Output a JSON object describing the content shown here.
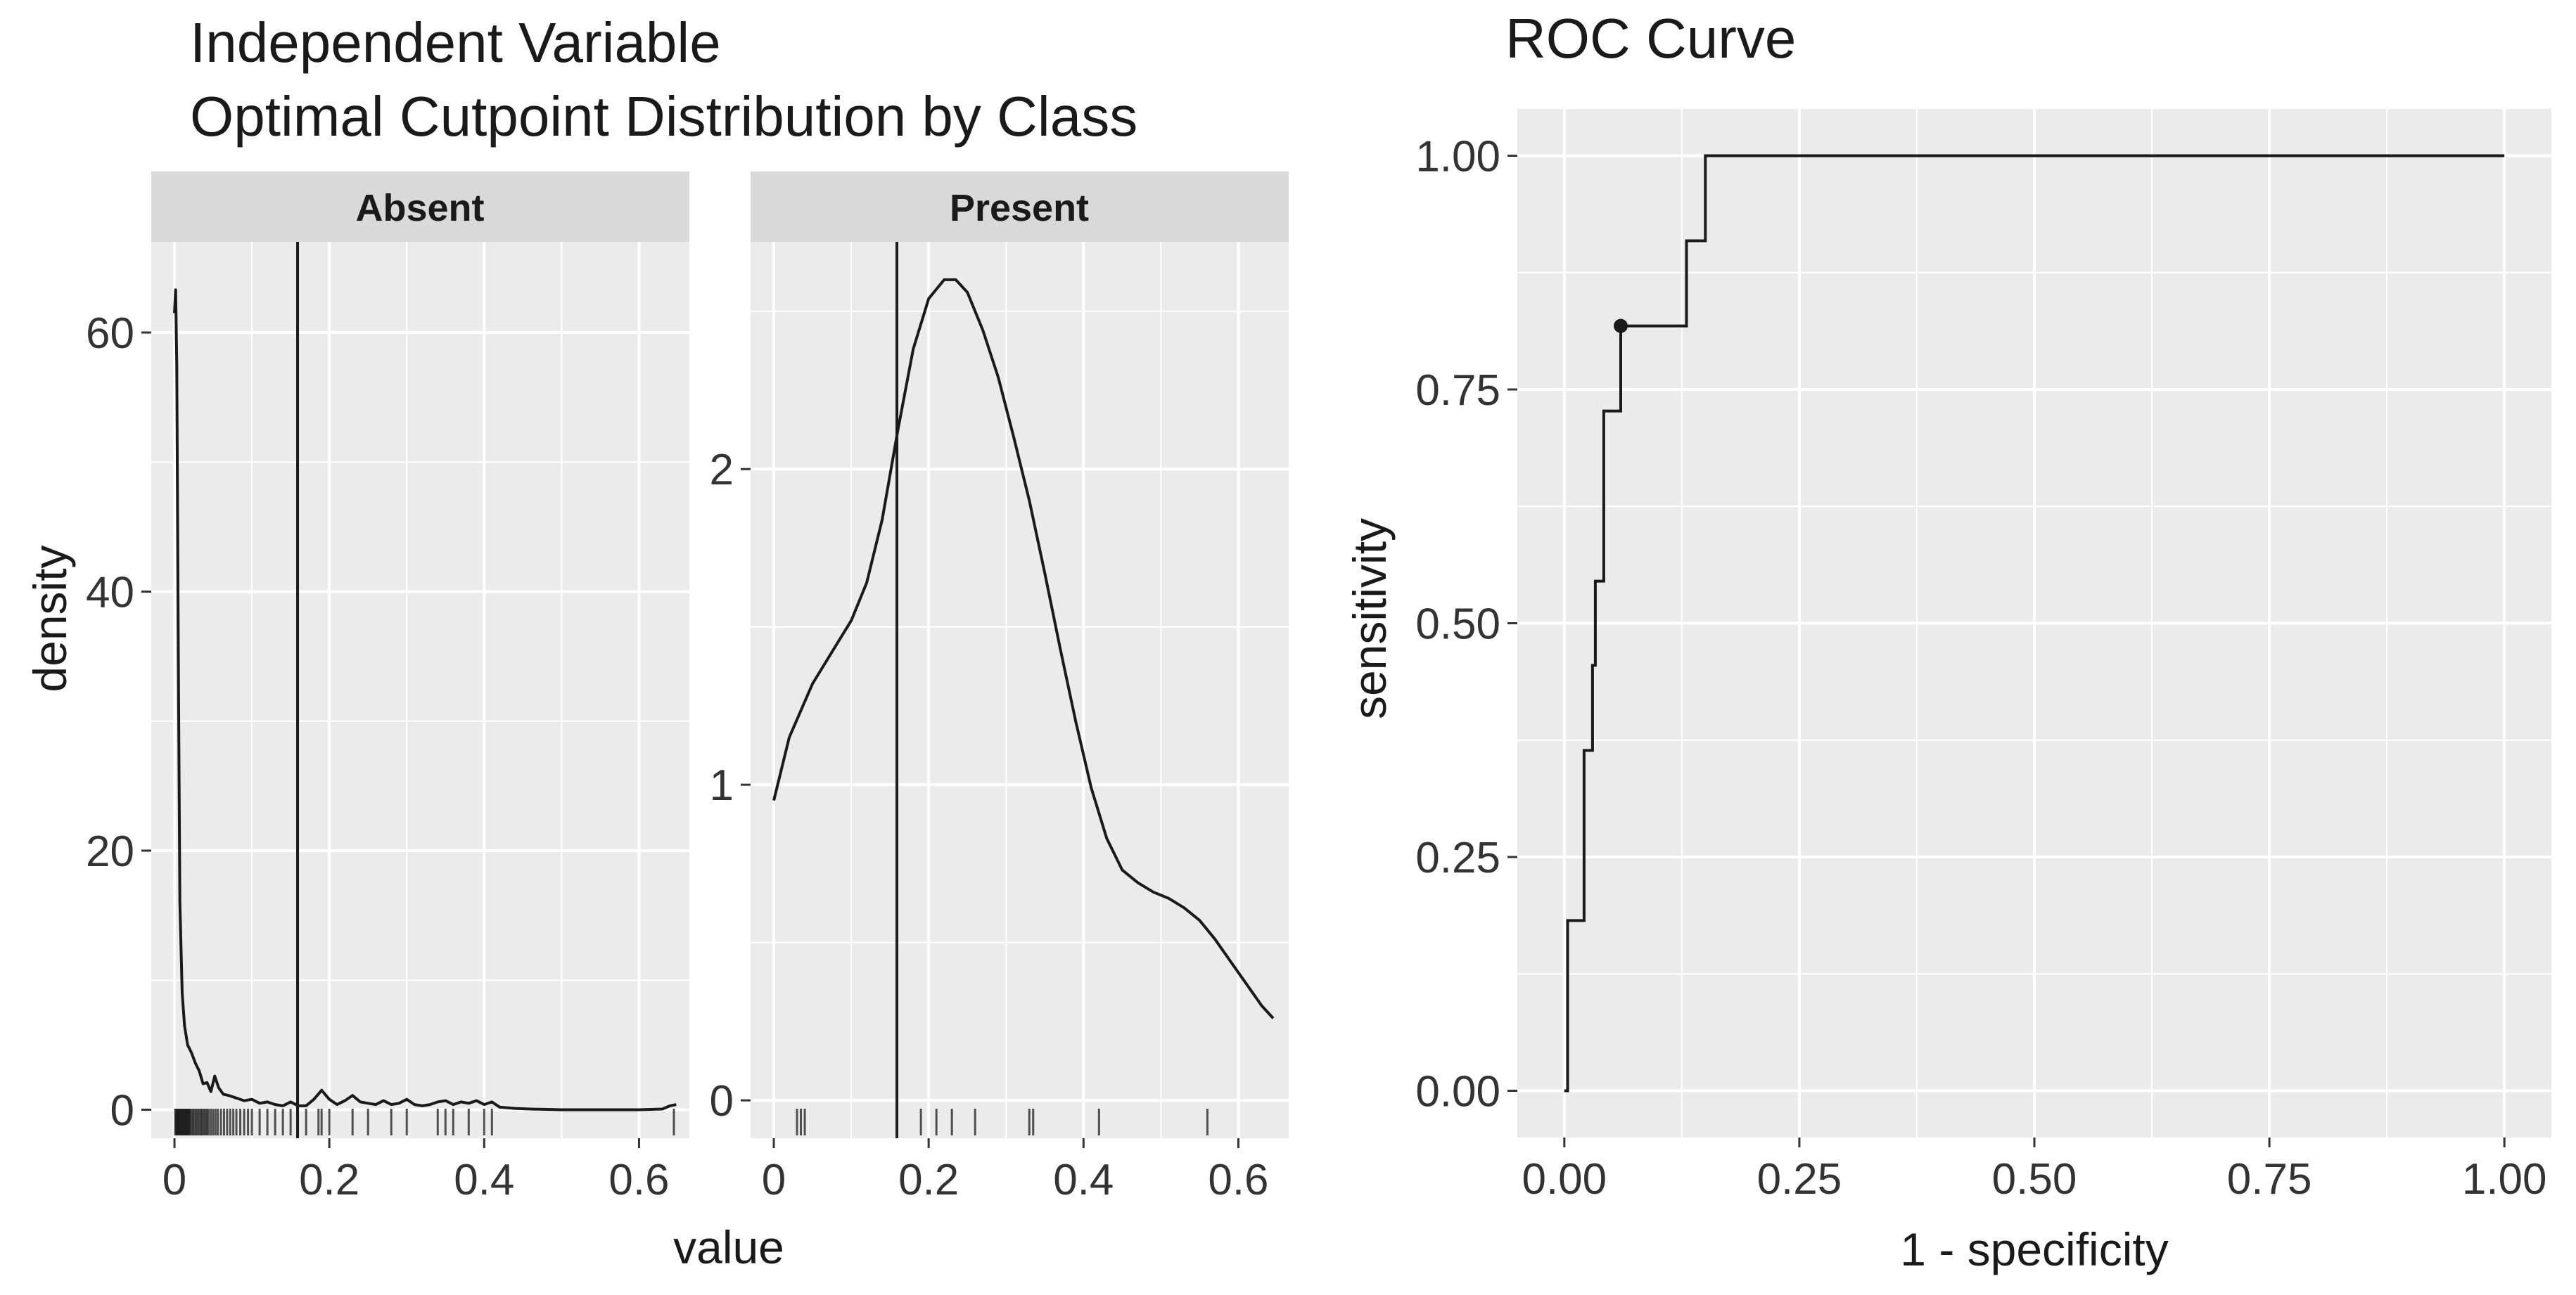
{
  "colors": {
    "panel_bg": "#ebebeb",
    "strip_bg": "#d9d9d9",
    "grid_major": "#ffffff",
    "ink": "#1a1a1a",
    "tick_text": "#333333",
    "axis_title": "#1a1a1a"
  },
  "chart_data": [
    {
      "type": "area",
      "title": "Independent Variable",
      "subtitle": "Optimal Cutpoint Distribution by Class",
      "xlabel": "value",
      "ylabel": "density",
      "cutpoint": 0.159,
      "facets": [
        {
          "name": "Absent",
          "xlim": [
            -0.03,
            0.665
          ],
          "ylim": [
            -2.2,
            67
          ],
          "xticks": [
            0,
            0.2,
            0.4,
            0.6
          ],
          "xtick_labels": [
            "0",
            "0.2",
            "0.4",
            "0.6"
          ],
          "yticks": [
            0,
            20,
            40,
            60
          ],
          "ytick_labels": [
            "0",
            "20",
            "40",
            "60"
          ],
          "x_minor": [
            0.1,
            0.3,
            0.5
          ],
          "y_minor": [
            10,
            30,
            50
          ],
          "density": [
            [
              0.0,
              61.5
            ],
            [
              0.0015,
              63.3
            ],
            [
              0.003,
              57.5
            ],
            [
              0.005,
              35.0
            ],
            [
              0.007,
              16.0
            ],
            [
              0.01,
              9.0
            ],
            [
              0.013,
              6.5
            ],
            [
              0.017,
              5.0
            ],
            [
              0.022,
              4.4
            ],
            [
              0.027,
              3.6
            ],
            [
              0.032,
              3.0
            ],
            [
              0.037,
              2.0
            ],
            [
              0.042,
              2.1
            ],
            [
              0.047,
              1.4
            ],
            [
              0.052,
              2.6
            ],
            [
              0.057,
              1.7
            ],
            [
              0.063,
              1.2
            ],
            [
              0.07,
              1.1
            ],
            [
              0.08,
              0.9
            ],
            [
              0.09,
              0.7
            ],
            [
              0.1,
              0.8
            ],
            [
              0.11,
              0.5
            ],
            [
              0.12,
              0.6
            ],
            [
              0.13,
              0.4
            ],
            [
              0.14,
              0.3
            ],
            [
              0.15,
              0.6
            ],
            [
              0.16,
              0.3
            ],
            [
              0.17,
              0.3
            ],
            [
              0.18,
              0.8
            ],
            [
              0.19,
              1.5
            ],
            [
              0.2,
              0.8
            ],
            [
              0.21,
              0.4
            ],
            [
              0.22,
              0.7
            ],
            [
              0.23,
              1.1
            ],
            [
              0.24,
              0.6
            ],
            [
              0.25,
              0.5
            ],
            [
              0.26,
              0.4
            ],
            [
              0.27,
              0.7
            ],
            [
              0.28,
              0.4
            ],
            [
              0.29,
              0.5
            ],
            [
              0.3,
              0.8
            ],
            [
              0.31,
              0.4
            ],
            [
              0.32,
              0.3
            ],
            [
              0.33,
              0.4
            ],
            [
              0.34,
              0.6
            ],
            [
              0.35,
              0.7
            ],
            [
              0.36,
              0.4
            ],
            [
              0.37,
              0.6
            ],
            [
              0.38,
              0.5
            ],
            [
              0.39,
              0.7
            ],
            [
              0.4,
              0.4
            ],
            [
              0.41,
              0.6
            ],
            [
              0.42,
              0.2
            ],
            [
              0.44,
              0.1
            ],
            [
              0.46,
              0.05
            ],
            [
              0.5,
              0.0
            ],
            [
              0.55,
              0.0
            ],
            [
              0.6,
              0.0
            ],
            [
              0.63,
              0.05
            ],
            [
              0.64,
              0.3
            ],
            [
              0.648,
              0.4
            ]
          ],
          "rug": [
            0.001,
            0.002,
            0.003,
            0.004,
            0.005,
            0.006,
            0.007,
            0.008,
            0.009,
            0.01,
            0.011,
            0.012,
            0.013,
            0.014,
            0.015,
            0.016,
            0.017,
            0.018,
            0.019,
            0.02,
            0.022,
            0.024,
            0.026,
            0.028,
            0.03,
            0.032,
            0.034,
            0.036,
            0.038,
            0.04,
            0.042,
            0.044,
            0.047,
            0.05,
            0.053,
            0.056,
            0.06,
            0.064,
            0.068,
            0.072,
            0.076,
            0.08,
            0.085,
            0.09,
            0.095,
            0.1,
            0.11,
            0.12,
            0.13,
            0.14,
            0.15,
            0.17,
            0.186,
            0.19,
            0.2,
            0.23,
            0.25,
            0.28,
            0.3,
            0.34,
            0.35,
            0.36,
            0.38,
            0.4,
            0.41,
            0.645
          ]
        },
        {
          "name": "Present",
          "xlim": [
            -0.03,
            0.665
          ],
          "ylim": [
            -0.12,
            2.72
          ],
          "xticks": [
            0,
            0.2,
            0.4,
            0.6
          ],
          "xtick_labels": [
            "0",
            "0.2",
            "0.4",
            "0.6"
          ],
          "yticks": [
            0,
            1,
            2
          ],
          "ytick_labels": [
            "0",
            "1",
            "2"
          ],
          "x_minor": [
            0.1,
            0.3,
            0.5
          ],
          "y_minor": [
            0.5,
            1.5,
            2.5
          ],
          "density": [
            [
              0.0,
              0.95
            ],
            [
              0.02,
              1.15
            ],
            [
              0.05,
              1.32
            ],
            [
              0.08,
              1.44
            ],
            [
              0.1,
              1.52
            ],
            [
              0.12,
              1.64
            ],
            [
              0.14,
              1.84
            ],
            [
              0.16,
              2.12
            ],
            [
              0.18,
              2.38
            ],
            [
              0.2,
              2.54
            ],
            [
              0.22,
              2.6
            ],
            [
              0.235,
              2.6
            ],
            [
              0.25,
              2.56
            ],
            [
              0.27,
              2.44
            ],
            [
              0.29,
              2.29
            ],
            [
              0.31,
              2.1
            ],
            [
              0.33,
              1.9
            ],
            [
              0.35,
              1.67
            ],
            [
              0.37,
              1.43
            ],
            [
              0.39,
              1.2
            ],
            [
              0.41,
              0.99
            ],
            [
              0.43,
              0.83
            ],
            [
              0.45,
              0.73
            ],
            [
              0.47,
              0.69
            ],
            [
              0.49,
              0.66
            ],
            [
              0.51,
              0.64
            ],
            [
              0.53,
              0.61
            ],
            [
              0.55,
              0.57
            ],
            [
              0.57,
              0.51
            ],
            [
              0.59,
              0.44
            ],
            [
              0.61,
              0.37
            ],
            [
              0.63,
              0.3
            ],
            [
              0.645,
              0.26
            ]
          ],
          "rug": [
            0.03,
            0.035,
            0.04,
            0.19,
            0.21,
            0.23,
            0.26,
            0.33,
            0.335,
            0.42,
            0.56
          ]
        }
      ]
    },
    {
      "type": "line",
      "title": "ROC Curve",
      "xlabel": "1 - specificity",
      "ylabel": "sensitivity",
      "xlim": [
        -0.05,
        1.05
      ],
      "ylim": [
        -0.05,
        1.05
      ],
      "xticks": [
        0,
        0.25,
        0.5,
        0.75,
        1.0
      ],
      "xtick_labels": [
        "0.00",
        "0.25",
        "0.50",
        "0.75",
        "1.00"
      ],
      "yticks": [
        0,
        0.25,
        0.5,
        0.75,
        1.0
      ],
      "ytick_labels": [
        "0.00",
        "0.25",
        "0.50",
        "0.75",
        "1.00"
      ],
      "x_minor": [
        0.125,
        0.375,
        0.625,
        0.875
      ],
      "y_minor": [
        0.125,
        0.375,
        0.625,
        0.875
      ],
      "points": [
        [
          0,
          0
        ],
        [
          0.0035,
          0
        ],
        [
          0.0035,
          0.182
        ],
        [
          0.021,
          0.182
        ],
        [
          0.021,
          0.364
        ],
        [
          0.03,
          0.364
        ],
        [
          0.03,
          0.455
        ],
        [
          0.033,
          0.455
        ],
        [
          0.033,
          0.545
        ],
        [
          0.042,
          0.545
        ],
        [
          0.042,
          0.727
        ],
        [
          0.06,
          0.727
        ],
        [
          0.06,
          0.818
        ],
        [
          0.13,
          0.818
        ],
        [
          0.13,
          0.909
        ],
        [
          0.15,
          0.909
        ],
        [
          0.15,
          1.0
        ],
        [
          1.0,
          1.0
        ]
      ],
      "optimal_point": [
        0.06,
        0.818
      ]
    }
  ]
}
